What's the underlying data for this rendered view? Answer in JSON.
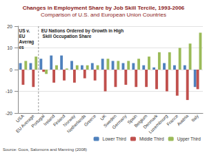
{
  "chart_data": {
    "type": "bar",
    "title": "Changes in Employment Share by Job Skill Tercile, 1993-2006",
    "subtitle": "Comparison of U.S. and European Union Countries",
    "categories": [
      "USA",
      "EU Average",
      "Portugal",
      "Ireland",
      "Finland",
      "Norway",
      "Netherlands",
      "Greece",
      "UK",
      "Sweden",
      "Germany",
      "Spain",
      "Belgium",
      "Denmark",
      "Luxembourg",
      "France",
      "Austria",
      "Italy"
    ],
    "series": [
      {
        "name": "Lower Third",
        "color": "#4f81bd",
        "values": [
          3,
          3,
          5,
          6.5,
          6.5,
          4,
          2,
          3,
          5,
          4,
          3,
          3,
          2,
          1,
          3,
          2,
          2,
          -8
        ]
      },
      {
        "name": "Middle Third",
        "color": "#c0504d",
        "values": [
          -7,
          -8,
          -1,
          -6,
          -5,
          -6,
          -4,
          -5,
          -10,
          -8,
          -7,
          -8,
          -8,
          -9,
          -10,
          -12,
          -14,
          -9
        ]
      },
      {
        "name": "Upper Third",
        "color": "#9bbb59",
        "values": [
          4,
          6,
          -2,
          2,
          0.5,
          2,
          2,
          2,
          5,
          4,
          4,
          5,
          6,
          8,
          8,
          10,
          12,
          17
        ]
      }
    ],
    "ylim": [
      -20,
      20
    ],
    "yticks": [
      -20,
      -10,
      0,
      10,
      20
    ],
    "grid": true,
    "legend": "bottom right",
    "annotations": [
      "US v. EU Averages",
      "EU Nations Ordered by Growth in High Skill Occupation Share"
    ],
    "source": "Source: Goos, Salomons and Manning (2008)"
  }
}
